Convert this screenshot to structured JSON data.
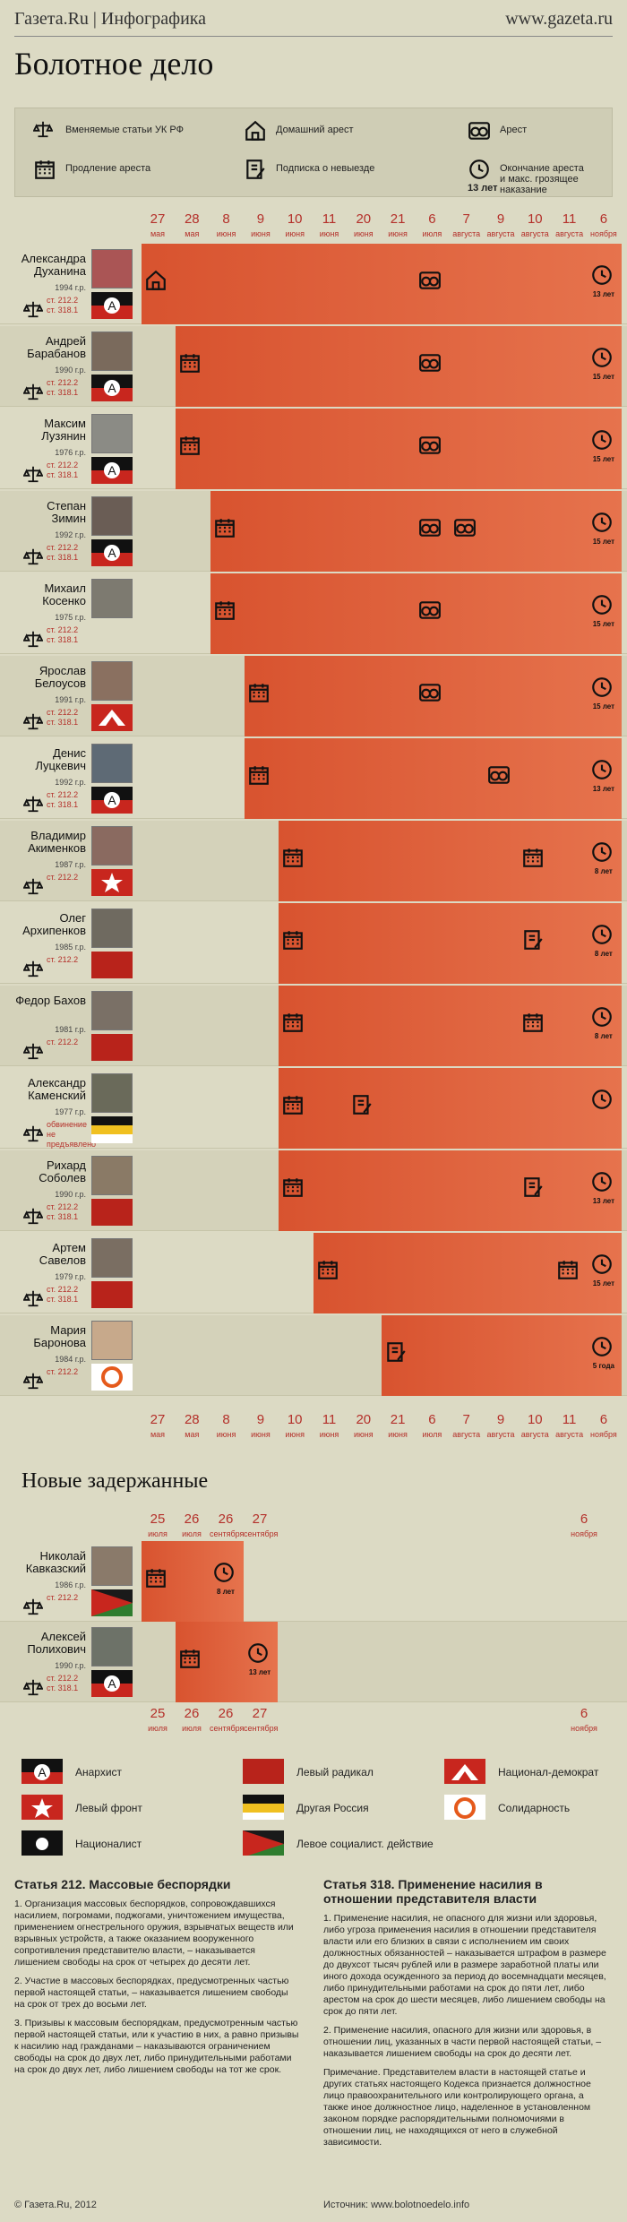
{
  "header": {
    "brand": "Газета.Ru | Инфографика",
    "site": "www.gazeta.ru",
    "title": "Болотное дело"
  },
  "legend_top": [
    {
      "icon": "scales-icon",
      "label": "Вменяемые статьи УК РФ"
    },
    {
      "icon": "house-icon",
      "label": "Домашний арест"
    },
    {
      "icon": "handcuffs-icon",
      "label": "Арест"
    },
    {
      "icon": "calendar-icon",
      "label": "Продление ареста"
    },
    {
      "icon": "pen-icon",
      "label": "Подписка о невыезде"
    },
    {
      "icon": "clock-icon",
      "label": "Окончание ареста\nи макс. грозящее наказание",
      "sub": "13 лет"
    }
  ],
  "dates": [
    {
      "d": "27",
      "m": "мая"
    },
    {
      "d": "28",
      "m": "мая"
    },
    {
      "d": "8",
      "m": "июня"
    },
    {
      "d": "9",
      "m": "июня"
    },
    {
      "d": "10",
      "m": "июня"
    },
    {
      "d": "11",
      "m": "июня"
    },
    {
      "d": "20",
      "m": "июня"
    },
    {
      "d": "21",
      "m": "июня"
    },
    {
      "d": "6",
      "m": "июля"
    },
    {
      "d": "7",
      "m": "августа"
    },
    {
      "d": "9",
      "m": "августа"
    },
    {
      "d": "10",
      "m": "августа"
    },
    {
      "d": "11",
      "m": "августа"
    },
    {
      "d": "6",
      "m": "ноября"
    }
  ],
  "people": [
    {
      "name": "Александра Духанина",
      "year": "1994 г.р.",
      "arts": "ст. 212.2\nст. 318.1",
      "term": "13 лет"
    },
    {
      "name": "Андрей Барабанов",
      "year": "1990 г.р.",
      "arts": "ст. 212.2\nст. 318.1",
      "term": "15 лет"
    },
    {
      "name": "Максим Лузянин",
      "year": "1976 г.р.",
      "arts": "ст. 212.2\nст. 318.1",
      "term": "15 лет"
    },
    {
      "name": "Степан Зимин",
      "year": "1992 г.р.",
      "arts": "ст. 212.2\nст. 318.1",
      "term": "15 лет"
    },
    {
      "name": "Михаил Косенко",
      "year": "1975 г.р.",
      "arts": "ст. 212.2\nст. 318.1",
      "term": "15 лет"
    },
    {
      "name": "Ярослав Белоусов",
      "year": "1991 г.р.",
      "arts": "ст. 212.2\nст. 318.1",
      "term": "15 лет"
    },
    {
      "name": "Денис Луцкевич",
      "year": "1992 г.р.",
      "arts": "ст. 212.2\nст. 318.1",
      "term": "13 лет"
    },
    {
      "name": "Владимир Акименков",
      "year": "1987 г.р.",
      "arts": "ст. 212.2",
      "term": "8 лет"
    },
    {
      "name": "Олег Архипенков",
      "year": "1985 г.р.",
      "arts": "ст. 212.2",
      "term": "8 лет"
    },
    {
      "name": "Федор Бахов",
      "year": "1981 г.р.",
      "arts": "ст. 212.2",
      "term": "8 лет"
    },
    {
      "name": "Александр Каменский",
      "year": "1977 г.р.",
      "arts": "обвинение\nне предъявлено",
      "term": ""
    },
    {
      "name": "Рихард Соболев",
      "year": "1990 г.р.",
      "arts": "ст. 212.2\nст. 318.1",
      "term": "13 лет"
    },
    {
      "name": "Артем Савелов",
      "year": "1979 г.р.",
      "arts": "ст. 212.2\nст. 318.1",
      "term": "15 лет"
    },
    {
      "name": "Мария Баронова",
      "year": "1984 г.р.",
      "arts": "ст. 212.2",
      "term": "5 года"
    }
  ],
  "new_title": "Новые задержанные",
  "new_dates": [
    {
      "d": "25",
      "m": "июля"
    },
    {
      "d": "26",
      "m": "июля"
    },
    {
      "d": "26",
      "m": "сентября"
    },
    {
      "d": "27",
      "m": "сентября"
    },
    {
      "d": "6",
      "m": "ноября"
    }
  ],
  "new_people": [
    {
      "name": "Николай Кавказский",
      "year": "1986 г.р.",
      "arts": "ст. 212.2",
      "term": "8 лет"
    },
    {
      "name": "Алексей Полихович",
      "year": "1990 г.р.",
      "arts": "ст. 212.2\nст. 318.1",
      "term": "13 лет"
    }
  ],
  "legend_bottom": [
    {
      "label": "Анархист"
    },
    {
      "label": "Левый радикал"
    },
    {
      "label": "Национал-демократ"
    },
    {
      "label": "Левый фронт"
    },
    {
      "label": "Другая Россия"
    },
    {
      "label": "Солидарность"
    },
    {
      "label": "Националист"
    },
    {
      "label": "Левое социалист. действие"
    }
  ],
  "articles": {
    "a1_head": "Статья 212. Массовые беспорядки",
    "a1_p1": "1. Организация массовых беспорядков, сопровождавшихся насилием, погромами, поджогами, уничтожением имущества, применением огнестрельного оружия, взрывчатых веществ или взрывных устройств, а также оказанием вооруженного сопротивления представителю власти, – наказывается лишением свободы на срок от четырех до десяти лет.",
    "a1_p2": "2. Участие в массовых беспорядках, предусмотренных частью первой настоящей статьи, – наказывается лишением свободы на срок от трех до восьми лет.",
    "a1_p3": "3. Призывы к массовым беспорядкам, предусмотренным частью первой настоящей статьи, или к участию в них, а равно призывы к насилию над гражданами – наказываются ограничением свободы на срок до двух лет, либо принудительными работами на срок до двух лет, либо лишением свободы на тот же срок.",
    "a2_head": "Статья 318. Применение насилия в отношении представителя власти",
    "a2_p1": "1. Применение насилия, не опасного для жизни или здоровья, либо угроза применения насилия в отношении представителя власти или его близких в связи с исполнением им своих должностных обязанностей – наказывается штрафом в размере до двухсот тысяч рублей или в размере заработной платы или иного дохода осужденного за период до восемнадцати месяцев, либо принудительными работами на срок до пяти лет, либо арестом на срок до шести месяцев, либо лишением свободы на срок до пяти лет.",
    "a2_p2": "2. Применение насилия, опасного для жизни или здоровья, в отношении лиц, указанных в части первой настоящей статьи, – наказывается лишением свободы на срок до десяти лет.",
    "a2_p3": "Примечание. Представителем власти в настоящей статье и других статьях настоящего Кодекса признается должностное лицо правоохранительного или контролирующего органа, а также иное должностное лицо, наделенное в установленном законом порядке распорядительными полномочиями в отношении лиц, не находящихся от него в служебной зависимости."
  },
  "footer": {
    "copy": "© Газета.Ru, 2012",
    "source": "Источник: www.bolotnoedelo.info"
  }
}
